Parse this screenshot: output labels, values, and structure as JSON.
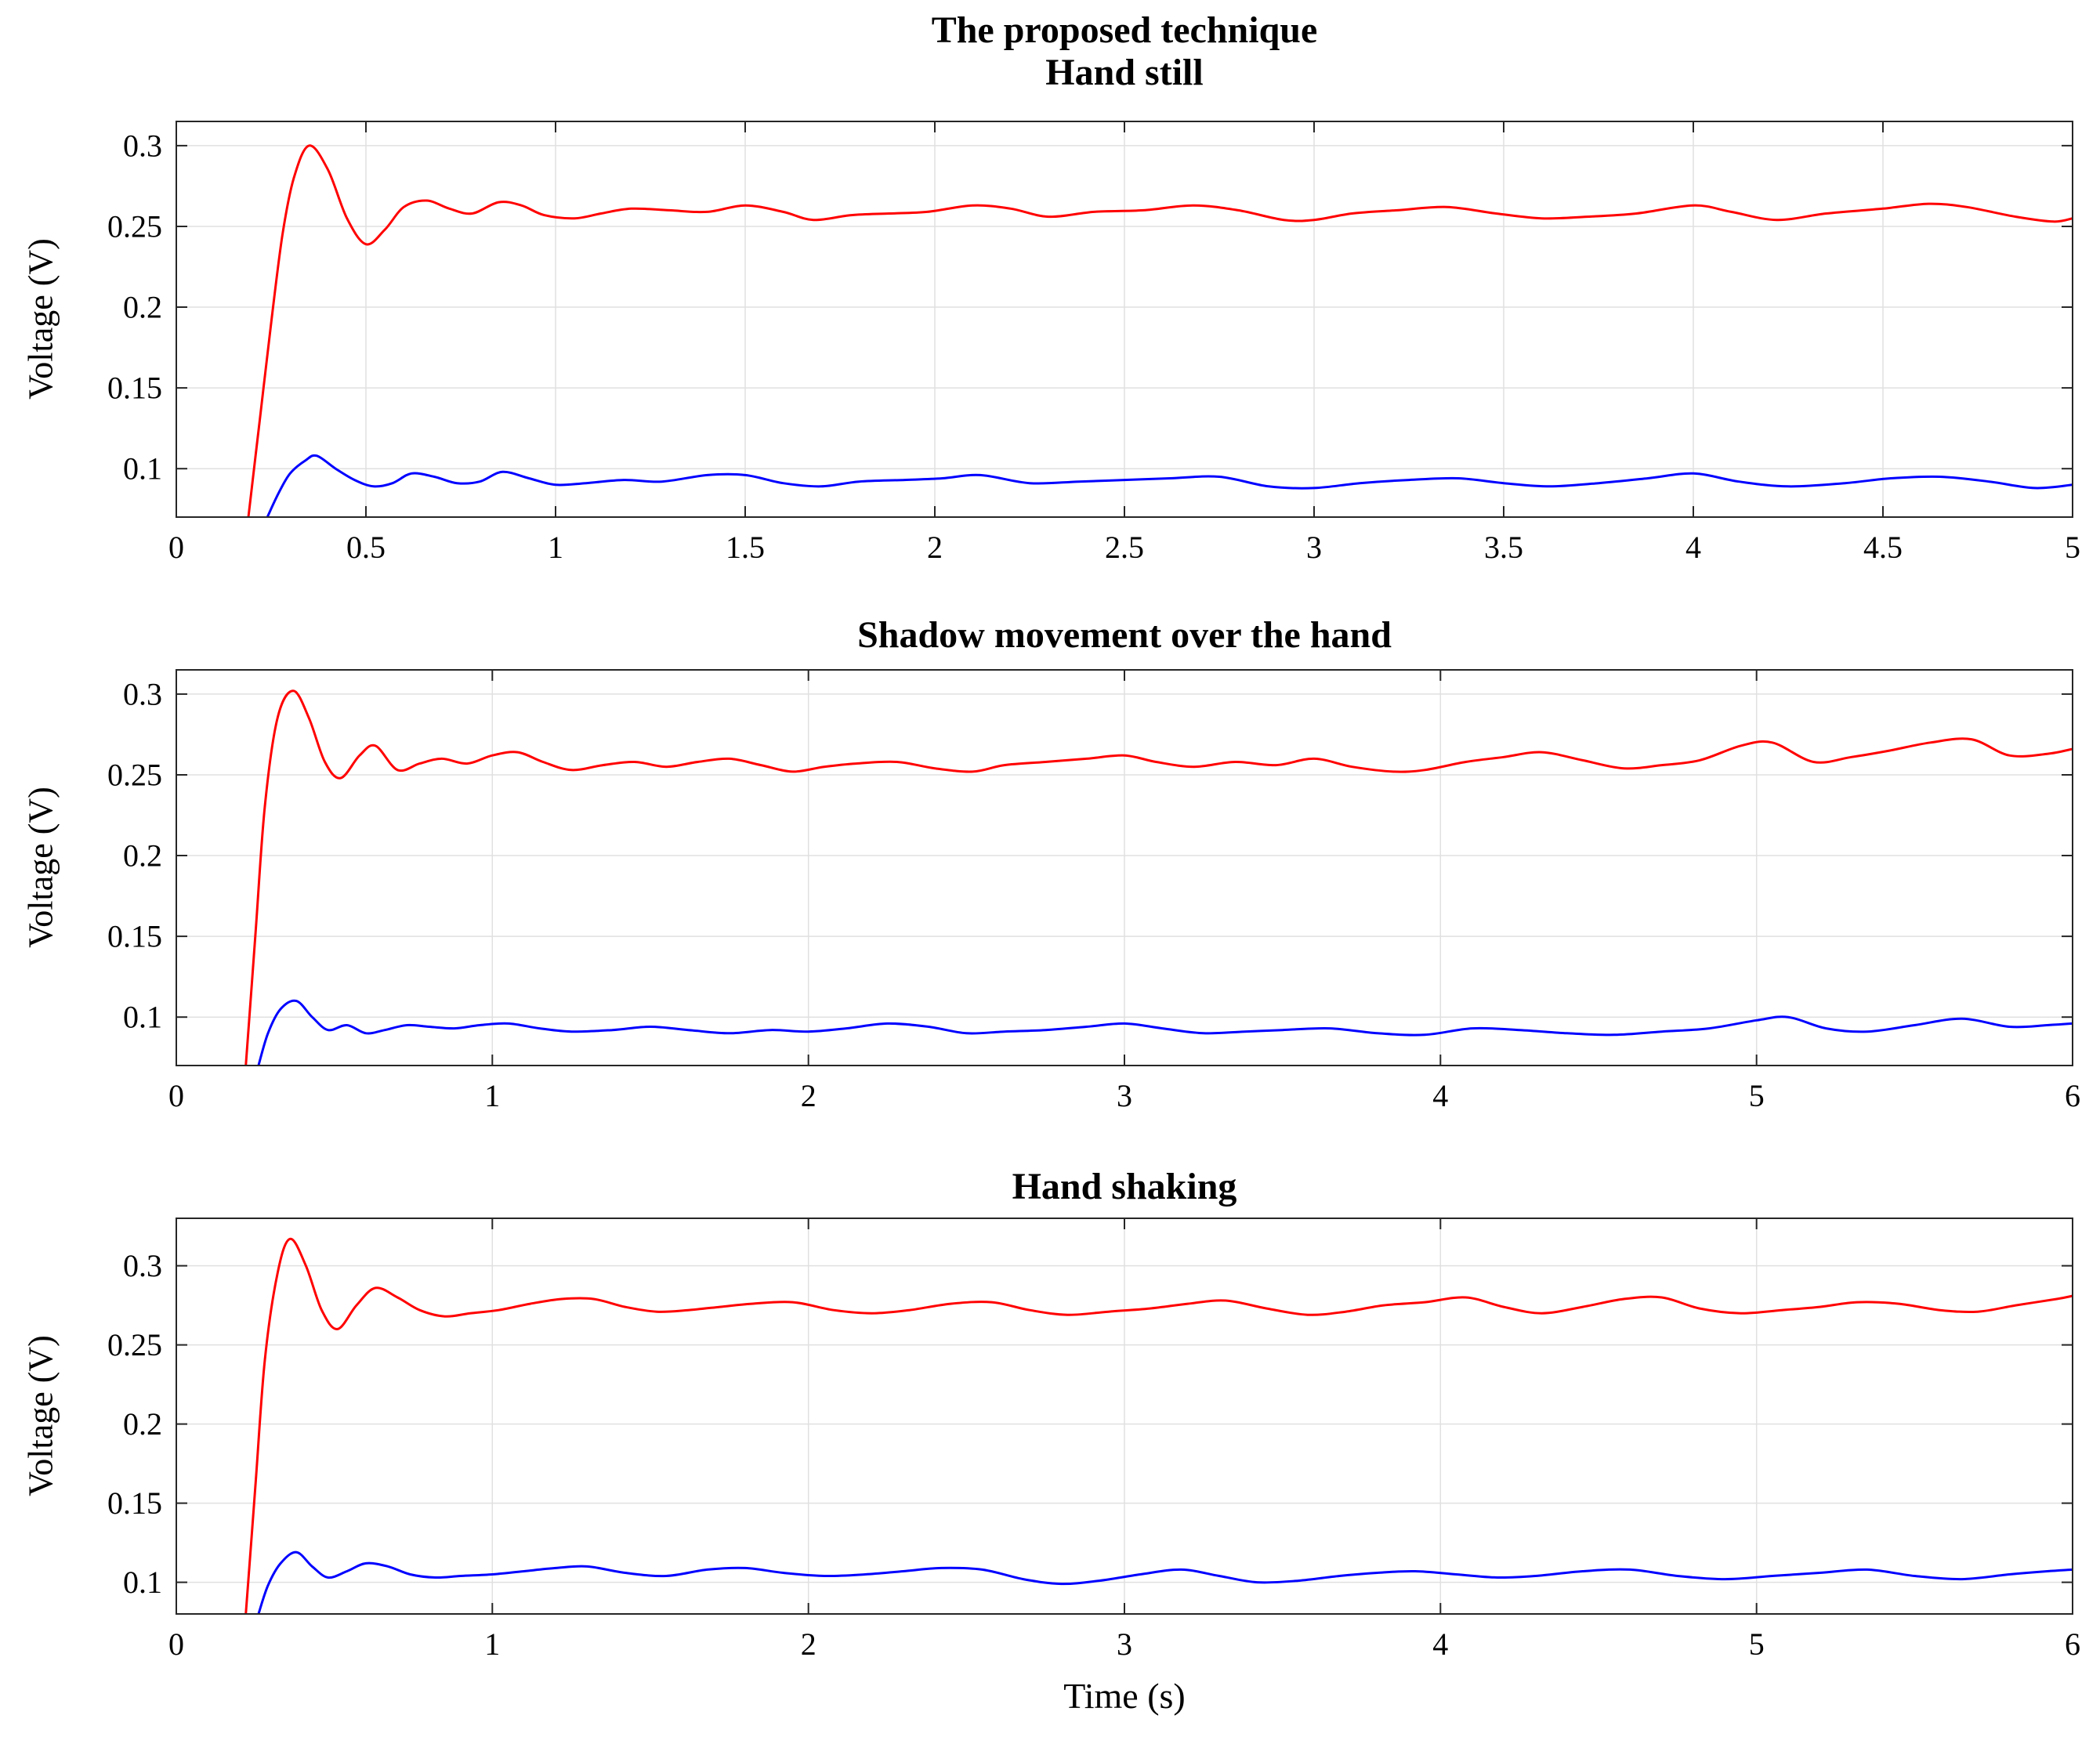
{
  "figure": {
    "suptitle": "The proposed technique",
    "colors": {
      "axis": "#262626",
      "grid": "#e0e0e0",
      "background": "#ffffff",
      "series_red": "#ff0000",
      "series_blue": "#0000ff"
    }
  },
  "chart_data": [
    {
      "type": "line",
      "title": "Hand still",
      "xlabel": "",
      "ylabel": "Voltage (V)",
      "xlim": [
        0,
        5
      ],
      "ylim": [
        0.07,
        0.315
      ],
      "xticks": [
        0,
        0.5,
        1,
        1.5,
        2,
        2.5,
        3,
        3.5,
        4,
        4.5,
        5
      ],
      "yticks": [
        0.1,
        0.15,
        0.2,
        0.25,
        0.3
      ],
      "grid": true,
      "legend": null,
      "series": [
        {
          "name": "red-signal",
          "color": "#ff0000",
          "x": [
            0.19,
            0.22,
            0.25,
            0.28,
            0.31,
            0.35,
            0.4,
            0.45,
            0.5,
            0.55,
            0.6,
            0.66,
            0.72,
            0.78,
            0.85,
            0.91,
            0.97,
            1.05,
            1.12,
            1.2,
            1.3,
            1.4,
            1.5,
            1.6,
            1.68,
            1.78,
            1.88,
            1.98,
            2.1,
            2.2,
            2.3,
            2.42,
            2.55,
            2.68,
            2.8,
            2.92,
            3.0,
            3.1,
            3.22,
            3.35,
            3.48,
            3.6,
            3.72,
            3.85,
            4.0,
            4.1,
            4.22,
            4.35,
            4.5,
            4.62,
            4.72,
            4.85,
            4.95,
            5.0
          ],
          "y": [
            0.07,
            0.13,
            0.19,
            0.245,
            0.28,
            0.3,
            0.285,
            0.255,
            0.239,
            0.248,
            0.262,
            0.266,
            0.261,
            0.258,
            0.265,
            0.263,
            0.257,
            0.255,
            0.258,
            0.261,
            0.26,
            0.259,
            0.263,
            0.259,
            0.254,
            0.257,
            0.258,
            0.259,
            0.263,
            0.261,
            0.256,
            0.259,
            0.26,
            0.263,
            0.26,
            0.254,
            0.254,
            0.258,
            0.26,
            0.262,
            0.258,
            0.255,
            0.256,
            0.258,
            0.263,
            0.259,
            0.254,
            0.258,
            0.261,
            0.264,
            0.262,
            0.256,
            0.253,
            0.255
          ]
        },
        {
          "name": "blue-signal",
          "color": "#0000ff",
          "x": [
            0.24,
            0.27,
            0.3,
            0.34,
            0.37,
            0.42,
            0.47,
            0.52,
            0.57,
            0.62,
            0.68,
            0.74,
            0.8,
            0.86,
            0.93,
            1.0,
            1.08,
            1.18,
            1.28,
            1.4,
            1.5,
            1.6,
            1.7,
            1.8,
            1.92,
            2.02,
            2.12,
            2.25,
            2.38,
            2.5,
            2.62,
            2.75,
            2.88,
            3.0,
            3.12,
            3.25,
            3.38,
            3.5,
            3.62,
            3.75,
            3.88,
            4.0,
            4.12,
            4.25,
            4.4,
            4.52,
            4.65,
            4.78,
            4.9,
            5.0
          ],
          "y": [
            0.07,
            0.085,
            0.097,
            0.105,
            0.108,
            0.1,
            0.093,
            0.089,
            0.091,
            0.097,
            0.095,
            0.091,
            0.092,
            0.098,
            0.094,
            0.09,
            0.091,
            0.093,
            0.092,
            0.096,
            0.096,
            0.091,
            0.089,
            0.092,
            0.093,
            0.094,
            0.096,
            0.091,
            0.092,
            0.093,
            0.094,
            0.095,
            0.089,
            0.088,
            0.091,
            0.093,
            0.094,
            0.091,
            0.089,
            0.091,
            0.094,
            0.097,
            0.092,
            0.089,
            0.091,
            0.094,
            0.095,
            0.092,
            0.088,
            0.09
          ]
        }
      ]
    },
    {
      "type": "line",
      "title": "Shadow movement over the hand",
      "xlabel": "",
      "ylabel": "Voltage (V)",
      "xlim": [
        0,
        6
      ],
      "ylim": [
        0.07,
        0.315
      ],
      "xticks": [
        0,
        1,
        2,
        3,
        4,
        5,
        6
      ],
      "yticks": [
        0.1,
        0.15,
        0.2,
        0.25,
        0.3
      ],
      "grid": true,
      "legend": null,
      "series": [
        {
          "name": "red-signal",
          "color": "#ff0000",
          "x": [
            0.22,
            0.25,
            0.28,
            0.32,
            0.37,
            0.42,
            0.47,
            0.52,
            0.58,
            0.63,
            0.7,
            0.77,
            0.84,
            0.92,
            1.0,
            1.08,
            1.16,
            1.25,
            1.35,
            1.45,
            1.55,
            1.65,
            1.75,
            1.85,
            1.95,
            2.05,
            2.15,
            2.28,
            2.4,
            2.52,
            2.62,
            2.75,
            2.88,
            3.0,
            3.1,
            3.22,
            3.35,
            3.48,
            3.6,
            3.72,
            3.85,
            3.95,
            4.08,
            4.2,
            4.32,
            4.45,
            4.58,
            4.7,
            4.82,
            4.95,
            5.05,
            5.18,
            5.3,
            5.42,
            5.55,
            5.68,
            5.8,
            5.92,
            6.0
          ],
          "y": [
            0.07,
            0.15,
            0.23,
            0.285,
            0.302,
            0.285,
            0.258,
            0.248,
            0.262,
            0.268,
            0.253,
            0.257,
            0.26,
            0.257,
            0.262,
            0.264,
            0.258,
            0.253,
            0.256,
            0.258,
            0.255,
            0.258,
            0.26,
            0.256,
            0.252,
            0.255,
            0.257,
            0.258,
            0.254,
            0.252,
            0.256,
            0.258,
            0.26,
            0.262,
            0.258,
            0.255,
            0.258,
            0.256,
            0.26,
            0.255,
            0.252,
            0.253,
            0.258,
            0.261,
            0.264,
            0.259,
            0.254,
            0.256,
            0.259,
            0.268,
            0.27,
            0.258,
            0.261,
            0.265,
            0.27,
            0.272,
            0.262,
            0.263,
            0.266
          ]
        },
        {
          "name": "blue-signal",
          "color": "#0000ff",
          "x": [
            0.26,
            0.29,
            0.33,
            0.38,
            0.43,
            0.48,
            0.54,
            0.6,
            0.66,
            0.73,
            0.8,
            0.88,
            0.96,
            1.05,
            1.15,
            1.25,
            1.38,
            1.5,
            1.62,
            1.75,
            1.88,
            2.0,
            2.12,
            2.25,
            2.38,
            2.5,
            2.62,
            2.75,
            2.88,
            3.0,
            3.12,
            3.25,
            3.38,
            3.5,
            3.65,
            3.8,
            3.95,
            4.1,
            4.25,
            4.4,
            4.55,
            4.7,
            4.85,
            5.0,
            5.1,
            5.22,
            5.35,
            5.5,
            5.65,
            5.8,
            5.92,
            6.0
          ],
          "y": [
            0.07,
            0.09,
            0.105,
            0.11,
            0.1,
            0.092,
            0.095,
            0.09,
            0.092,
            0.095,
            0.094,
            0.093,
            0.095,
            0.096,
            0.093,
            0.091,
            0.092,
            0.094,
            0.092,
            0.09,
            0.092,
            0.091,
            0.093,
            0.096,
            0.094,
            0.09,
            0.091,
            0.092,
            0.094,
            0.096,
            0.093,
            0.09,
            0.091,
            0.092,
            0.093,
            0.09,
            0.089,
            0.093,
            0.092,
            0.09,
            0.089,
            0.091,
            0.093,
            0.098,
            0.1,
            0.093,
            0.091,
            0.095,
            0.099,
            0.094,
            0.095,
            0.096
          ]
        }
      ]
    },
    {
      "type": "line",
      "title": "Hand shaking",
      "xlabel": "Time (s)",
      "ylabel": "Voltage (V)",
      "xlim": [
        0,
        6
      ],
      "ylim": [
        0.08,
        0.33
      ],
      "xticks": [
        0,
        1,
        2,
        3,
        4,
        5,
        6
      ],
      "yticks": [
        0.1,
        0.15,
        0.2,
        0.25,
        0.3
      ],
      "grid": true,
      "legend": null,
      "series": [
        {
          "name": "red-signal",
          "color": "#ff0000",
          "x": [
            0.22,
            0.25,
            0.28,
            0.32,
            0.36,
            0.41,
            0.46,
            0.51,
            0.57,
            0.63,
            0.7,
            0.77,
            0.85,
            0.93,
            1.02,
            1.12,
            1.22,
            1.32,
            1.42,
            1.52,
            1.62,
            1.72,
            1.82,
            1.95,
            2.08,
            2.2,
            2.32,
            2.45,
            2.58,
            2.7,
            2.82,
            2.95,
            3.08,
            3.2,
            3.32,
            3.45,
            3.58,
            3.7,
            3.82,
            3.95,
            4.08,
            4.2,
            4.32,
            4.45,
            4.58,
            4.7,
            4.82,
            4.95,
            5.08,
            5.2,
            5.32,
            5.45,
            5.58,
            5.7,
            5.82,
            5.95,
            6.0
          ],
          "y": [
            0.08,
            0.16,
            0.24,
            0.295,
            0.317,
            0.3,
            0.272,
            0.26,
            0.275,
            0.286,
            0.28,
            0.272,
            0.268,
            0.27,
            0.272,
            0.276,
            0.279,
            0.279,
            0.274,
            0.271,
            0.272,
            0.274,
            0.276,
            0.277,
            0.272,
            0.27,
            0.272,
            0.276,
            0.277,
            0.272,
            0.269,
            0.271,
            0.273,
            0.276,
            0.278,
            0.273,
            0.269,
            0.271,
            0.275,
            0.277,
            0.28,
            0.274,
            0.27,
            0.274,
            0.279,
            0.28,
            0.273,
            0.27,
            0.272,
            0.274,
            0.277,
            0.276,
            0.272,
            0.271,
            0.275,
            0.279,
            0.281
          ]
        },
        {
          "name": "blue-signal",
          "color": "#0000ff",
          "x": [
            0.26,
            0.29,
            0.33,
            0.38,
            0.43,
            0.48,
            0.54,
            0.6,
            0.67,
            0.74,
            0.82,
            0.9,
            1.0,
            1.1,
            1.2,
            1.3,
            1.42,
            1.55,
            1.68,
            1.8,
            1.92,
            2.05,
            2.18,
            2.3,
            2.42,
            2.55,
            2.68,
            2.8,
            2.92,
            3.05,
            3.18,
            3.3,
            3.42,
            3.55,
            3.68,
            3.8,
            3.92,
            4.05,
            4.18,
            4.3,
            4.45,
            4.6,
            4.75,
            4.9,
            5.05,
            5.2,
            5.35,
            5.5,
            5.65,
            5.8,
            5.92,
            6.0
          ],
          "y": [
            0.08,
            0.098,
            0.112,
            0.119,
            0.11,
            0.103,
            0.107,
            0.112,
            0.11,
            0.105,
            0.103,
            0.104,
            0.105,
            0.107,
            0.109,
            0.11,
            0.106,
            0.104,
            0.108,
            0.109,
            0.106,
            0.104,
            0.105,
            0.107,
            0.109,
            0.108,
            0.102,
            0.099,
            0.101,
            0.105,
            0.108,
            0.104,
            0.1,
            0.101,
            0.104,
            0.106,
            0.107,
            0.105,
            0.103,
            0.104,
            0.107,
            0.108,
            0.104,
            0.102,
            0.104,
            0.106,
            0.108,
            0.104,
            0.102,
            0.105,
            0.107,
            0.108
          ]
        }
      ]
    }
  ]
}
